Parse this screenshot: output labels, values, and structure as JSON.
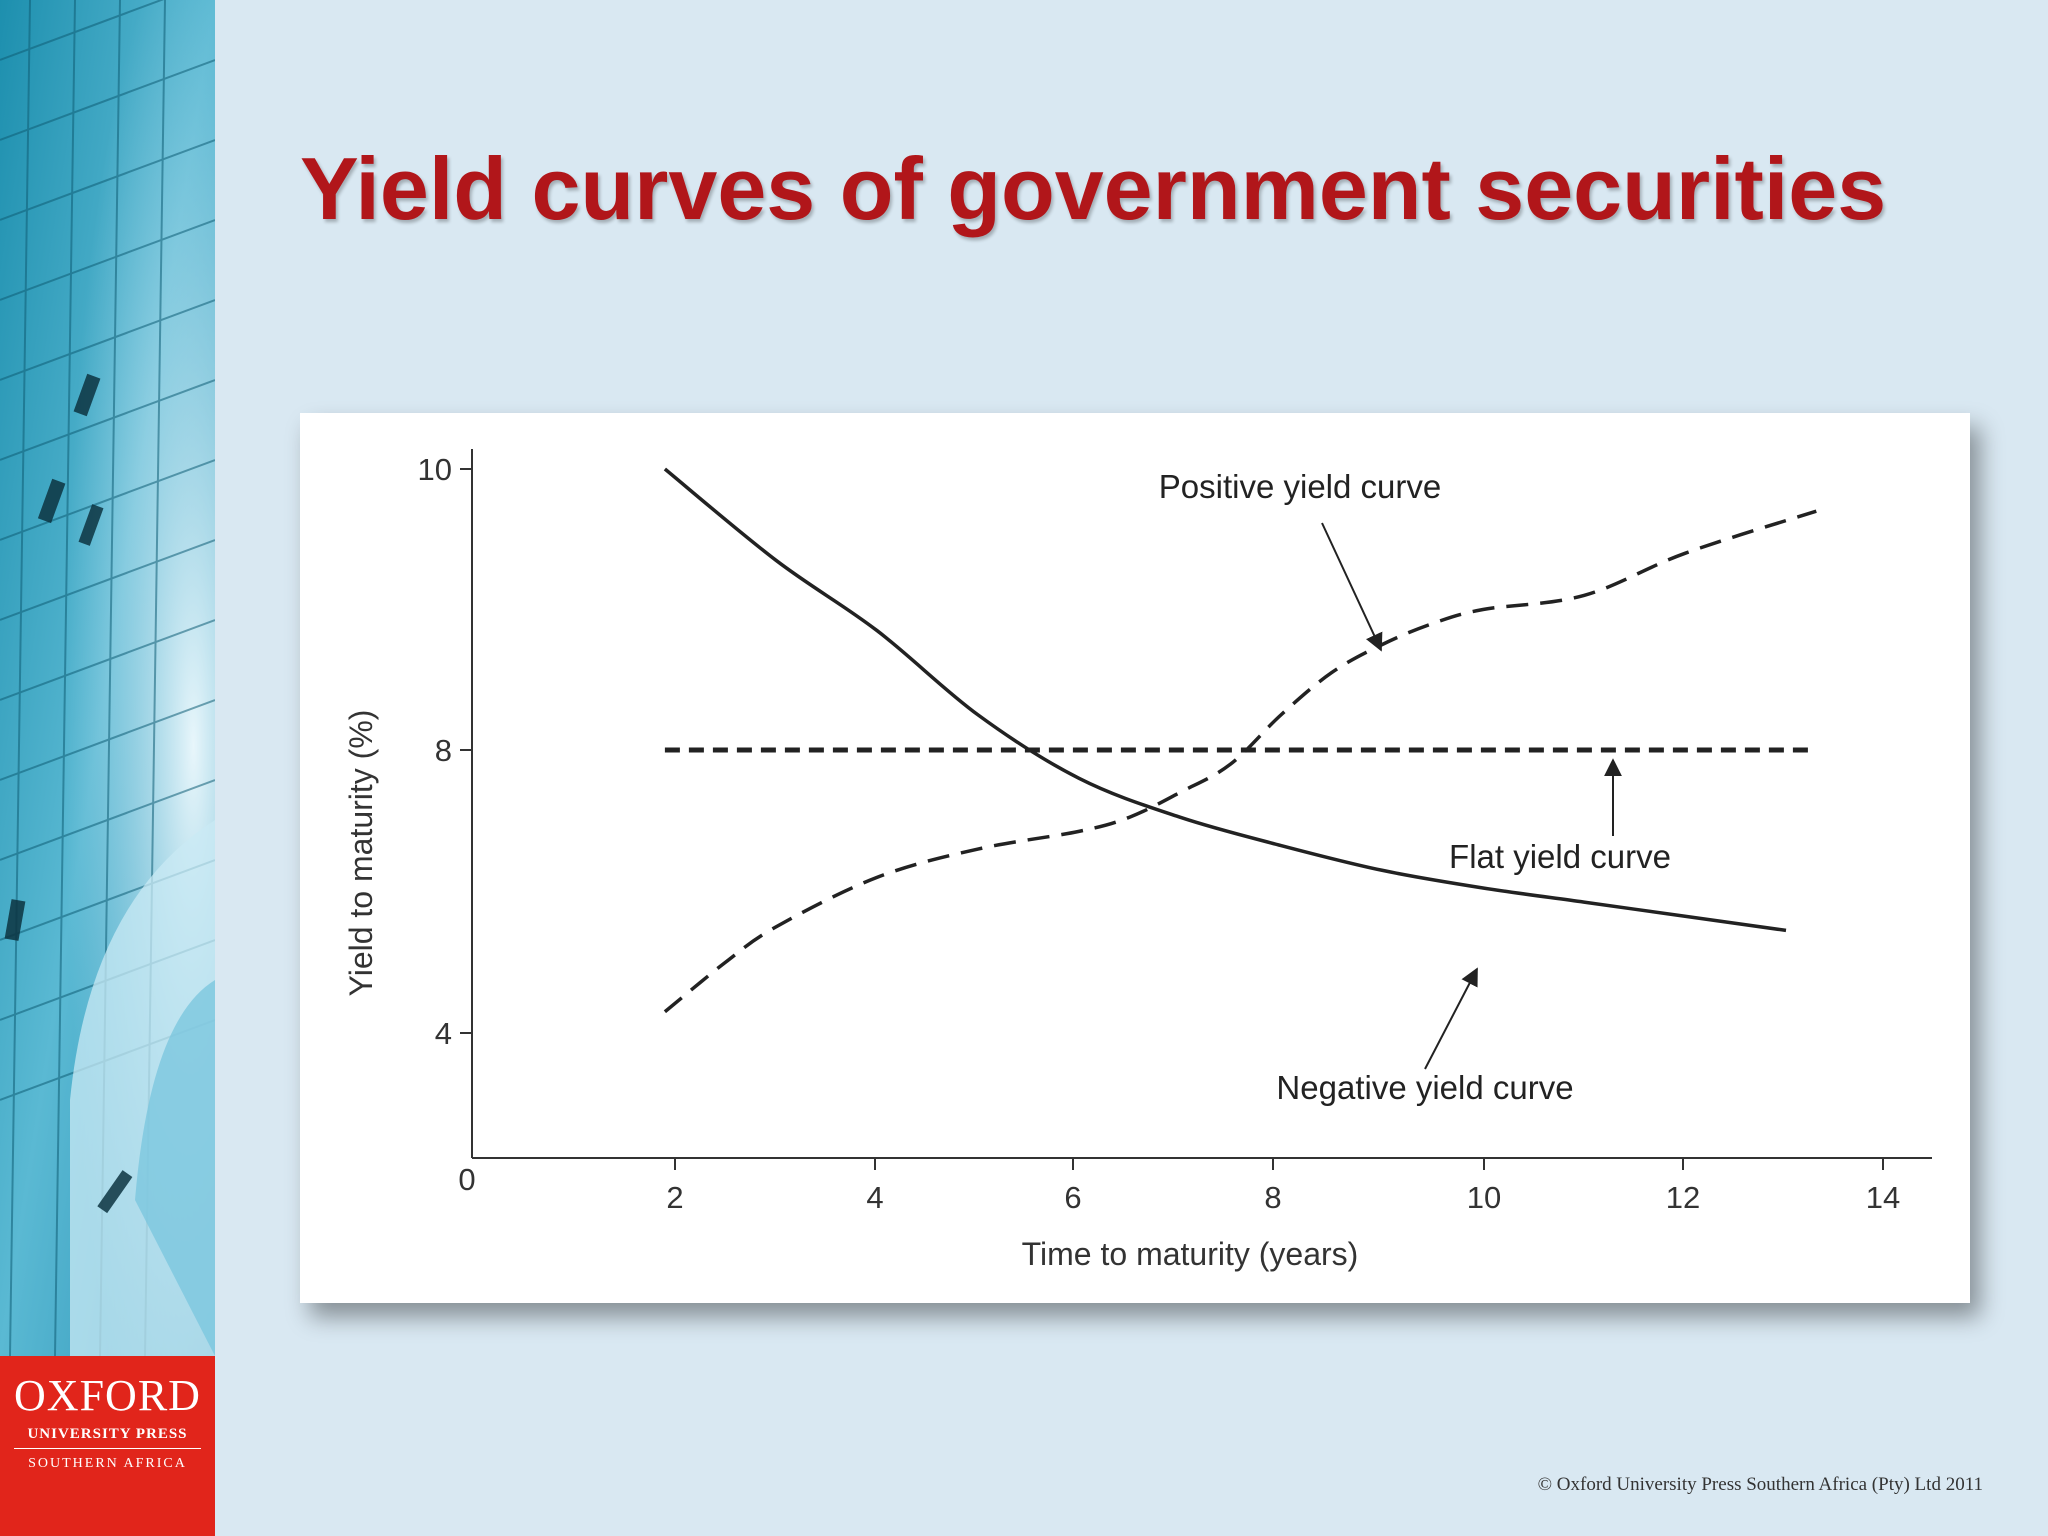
{
  "slide": {
    "title": "Yield curves of government securities",
    "copyright": "© Oxford University Press Southern Africa (Pty) Ltd 2011"
  },
  "logo": {
    "main": "OXFORD",
    "sub1": "UNIVERSITY PRESS",
    "sub2": "SOUTHERN AFRICA"
  },
  "colors": {
    "title": "#b1161a",
    "logo_bg": "#e1251b",
    "background": "#d9e8f2",
    "curve": "#222222"
  },
  "chart_data": {
    "type": "line",
    "title": "",
    "xlabel": "Time to maturity (years)",
    "ylabel": "Yield to maturity (%)",
    "xlim": [
      0,
      14
    ],
    "x_ticks": [
      2,
      4,
      6,
      8,
      10,
      12,
      14
    ],
    "y_ticks": [
      4,
      8,
      10
    ],
    "origin_label": "0",
    "grid": false,
    "series": [
      {
        "name": "Negative yield curve",
        "style": "solid",
        "x": [
          1.9,
          3,
          4,
          5,
          6,
          7,
          8,
          9,
          10,
          11,
          12,
          13
        ],
        "y": [
          10.0,
          9.35,
          8.85,
          8.25,
          7.6,
          7.05,
          6.65,
          6.3,
          6.05,
          5.85,
          5.65,
          5.45
        ]
      },
      {
        "name": "Positive yield curve",
        "style": "dashed",
        "x": [
          1.9,
          2.5,
          3,
          4,
          5,
          6,
          6.5,
          7,
          7.5,
          8,
          8.5,
          9,
          9.5,
          10,
          11,
          12,
          13.3
        ],
        "y": [
          4.3,
          5.0,
          5.5,
          6.2,
          6.6,
          6.85,
          7.05,
          7.4,
          7.8,
          8.25,
          8.55,
          8.75,
          8.9,
          9.0,
          9.1,
          9.4,
          9.7
        ]
      },
      {
        "name": "Flat yield curve",
        "style": "dashed-heavy",
        "x": [
          1.9,
          13.3
        ],
        "y": [
          8,
          8
        ]
      }
    ],
    "annotations": [
      {
        "text": "Positive yield curve",
        "series": "Positive yield curve",
        "pointer_at": [
          9.2,
          8.8
        ]
      },
      {
        "text": "Flat yield curve",
        "series": "Flat yield curve",
        "pointer_at": [
          11.2,
          8.0
        ]
      },
      {
        "text": "Negative yield curve",
        "series": "Negative yield curve",
        "pointer_at": [
          10.2,
          6.0
        ]
      }
    ]
  }
}
